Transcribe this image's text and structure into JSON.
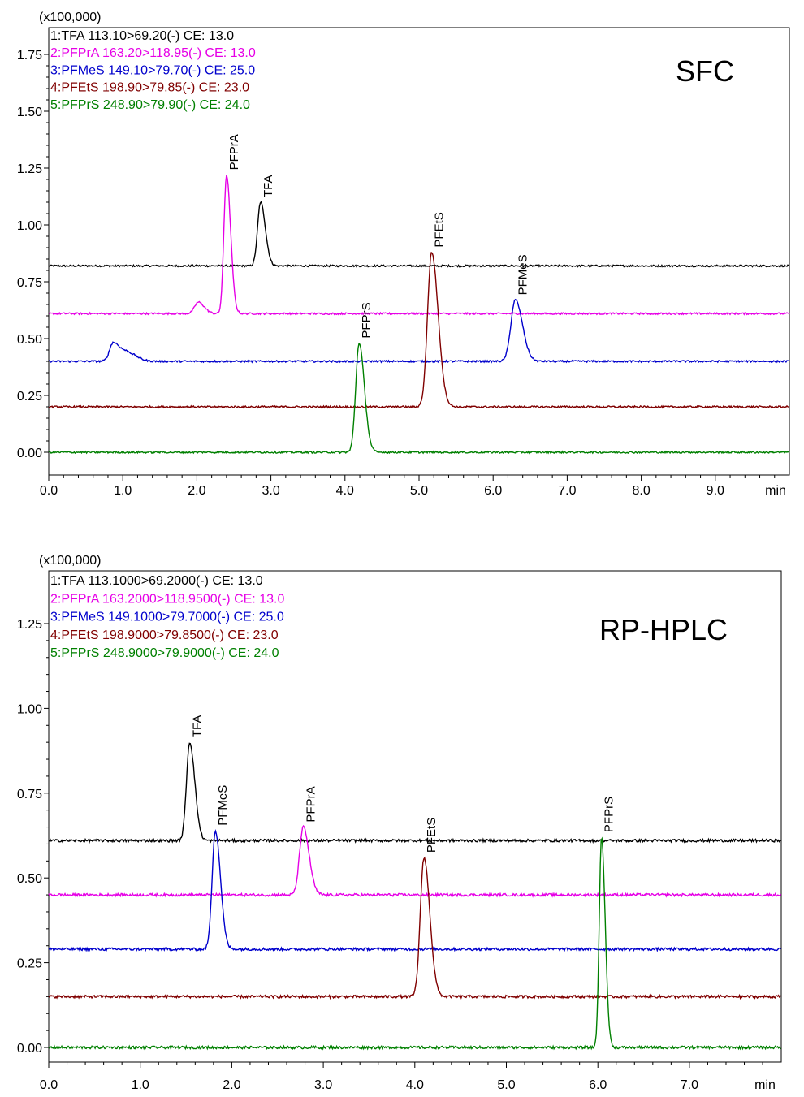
{
  "chart_data": [
    {
      "type": "line",
      "title": "SFC",
      "y_scale_label": "(x100,000)",
      "xlabel": "min",
      "xlim": [
        0,
        10
      ],
      "ylim": [
        -0.1,
        1.9
      ],
      "x_ticks": [
        "0.0",
        "1.0",
        "2.0",
        "3.0",
        "4.0",
        "5.0",
        "6.0",
        "7.0",
        "8.0",
        "9.0"
      ],
      "y_ticks": [
        "0.00",
        "0.25",
        "0.50",
        "0.75",
        "1.00",
        "1.25",
        "1.50",
        "1.75"
      ],
      "legend": [
        {
          "text": "1:TFA 113.10>69.20(-) CE: 13.0",
          "color": "#000000"
        },
        {
          "text": "2:PFPrA 163.20>118.95(-) CE: 13.0",
          "color": "#e600e6"
        },
        {
          "text": "3:PFMeS 149.10>79.70(-) CE: 25.0",
          "color": "#0000cc"
        },
        {
          "text": "4:PFEtS 198.90>79.85(-) CE: 23.0",
          "color": "#800000"
        },
        {
          "text": "5:PFPrS 248.90>79.90(-) CE: 24.0",
          "color": "#008000"
        }
      ],
      "series": [
        {
          "color": "#000000",
          "baseline": 0.82,
          "peaks": [
            {
              "rt": 2.86,
              "height": 0.28,
              "width": 0.04,
              "label": "TFA"
            }
          ]
        },
        {
          "color": "#e600e6",
          "baseline": 0.61,
          "peaks": [
            {
              "rt": 2.02,
              "height": 0.05,
              "width": 0.05
            },
            {
              "rt": 2.4,
              "height": 0.61,
              "width": 0.035,
              "label": "PFPrA"
            }
          ]
        },
        {
          "color": "#0000cc",
          "baseline": 0.4,
          "peaks": [
            {
              "rt": 0.87,
              "height": 0.08,
              "width": 0.05
            },
            {
              "rt": 1.05,
              "height": 0.04,
              "width": 0.08
            },
            {
              "rt": 6.3,
              "height": 0.27,
              "width": 0.06,
              "label": "PFMeS"
            }
          ]
        },
        {
          "color": "#800000",
          "baseline": 0.2,
          "peaks": [
            {
              "rt": 5.17,
              "height": 0.68,
              "width": 0.055,
              "label": "PFEtS"
            }
          ]
        },
        {
          "color": "#008000",
          "baseline": 0.0,
          "peaks": [
            {
              "rt": 4.19,
              "height": 0.48,
              "width": 0.045,
              "label": "PFPrS"
            }
          ]
        }
      ]
    },
    {
      "type": "line",
      "title": "RP-HPLC",
      "y_scale_label": "(x100,000)",
      "xlabel": "min",
      "xlim": [
        0,
        8
      ],
      "ylim": [
        -0.05,
        1.42
      ],
      "x_ticks": [
        "0.0",
        "1.0",
        "2.0",
        "3.0",
        "4.0",
        "5.0",
        "6.0",
        "7.0"
      ],
      "y_ticks": [
        "0.00",
        "0.25",
        "0.50",
        "0.75",
        "1.00",
        "1.25"
      ],
      "legend": [
        {
          "text": "1:TFA 113.1000>69.2000(-) CE: 13.0",
          "color": "#000000"
        },
        {
          "text": "2:PFPrA 163.2000>118.9500(-) CE: 13.0",
          "color": "#e600e6"
        },
        {
          "text": "3:PFMeS 149.1000>79.7000(-) CE: 25.0",
          "color": "#0000cc"
        },
        {
          "text": "4:PFEtS 198.9000>79.8500(-) CE: 23.0",
          "color": "#800000"
        },
        {
          "text": "5:PFPrS 248.9000>79.9000(-) CE: 24.0",
          "color": "#008000"
        }
      ],
      "series": [
        {
          "color": "#000000",
          "baseline": 0.61,
          "peaks": [
            {
              "rt": 1.54,
              "height": 0.29,
              "width": 0.035,
              "label": "TFA"
            }
          ]
        },
        {
          "color": "#e600e6",
          "baseline": 0.45,
          "peaks": [
            {
              "rt": 2.78,
              "height": 0.2,
              "width": 0.04,
              "label": "PFPrA"
            }
          ]
        },
        {
          "color": "#0000cc",
          "baseline": 0.29,
          "peaks": [
            {
              "rt": 1.82,
              "height": 0.35,
              "width": 0.035,
              "label": "PFMeS"
            }
          ]
        },
        {
          "color": "#800000",
          "baseline": 0.15,
          "peaks": [
            {
              "rt": 4.1,
              "height": 0.41,
              "width": 0.04,
              "label": "PFEtS"
            }
          ]
        },
        {
          "color": "#008000",
          "baseline": 0.0,
          "peaks": [
            {
              "rt": 6.04,
              "height": 0.62,
              "width": 0.025,
              "label": "PFPrS"
            }
          ]
        }
      ]
    }
  ]
}
